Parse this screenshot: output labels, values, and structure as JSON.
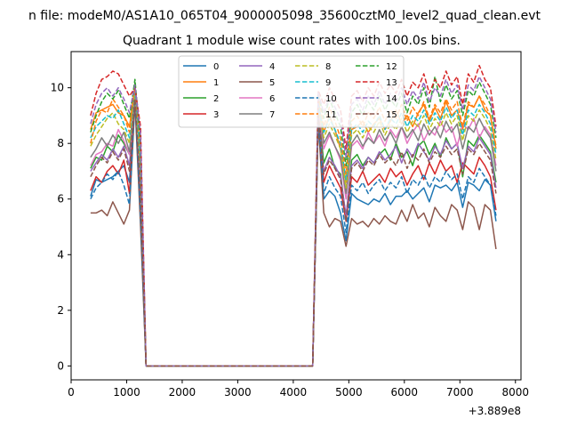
{
  "suptitle": "n file: modeM0/AS1A10_065T04_9000005098_35600cztM0_level2_quad_clean.evt",
  "chart_data": {
    "type": "line",
    "title": "Quadrant 1 module wise count rates with 100.0s bins.",
    "xlabel": "",
    "ylabel": "",
    "x_offset_label": "+3.889e8",
    "xlim": [
      0,
      8100
    ],
    "ylim": [
      -0.5,
      11.3
    ],
    "x_ticks": [
      0,
      1000,
      2000,
      3000,
      4000,
      5000,
      6000,
      7000,
      8000
    ],
    "y_ticks": [
      0,
      2,
      4,
      6,
      8,
      10
    ],
    "grid": false,
    "legend_placement": "top-center",
    "x": [
      350,
      450,
      550,
      650,
      750,
      850,
      950,
      1050,
      1150,
      1250,
      1350,
      1450,
      4350,
      4450,
      4550,
      4650,
      4750,
      4850,
      4950,
      5050,
      5150,
      5250,
      5350,
      5450,
      5550,
      5650,
      5750,
      5850,
      5950,
      6050,
      6150,
      6250,
      6350,
      6450,
      6550,
      6650,
      6750,
      6850,
      6950,
      7050,
      7150,
      7250,
      7350,
      7450,
      7550,
      7650
    ],
    "series": [
      {
        "name": "0",
        "color": "#1f77b4",
        "dash": "solid",
        "values": [
          6.1,
          6.7,
          6.6,
          6.7,
          6.8,
          7.0,
          7.2,
          6.6,
          9.8,
          5.5,
          0,
          0,
          0,
          9.1,
          6.0,
          6.3,
          6.1,
          5.5,
          4.5,
          6.2,
          6.0,
          5.9,
          5.8,
          6.0,
          5.9,
          6.2,
          5.8,
          6.1,
          6.1,
          6.3,
          6.0,
          6.2,
          6.4,
          5.9,
          6.5,
          6.4,
          6.5,
          6.3,
          6.6,
          5.7,
          6.6,
          6.5,
          6.3,
          6.7,
          6.5,
          5.2
        ]
      },
      {
        "name": "1",
        "color": "#ff7f0e",
        "dash": "solid",
        "values": [
          8.5,
          9.1,
          9.2,
          9.3,
          9.4,
          9.1,
          9.0,
          8.6,
          10.0,
          7.5,
          0,
          0,
          0,
          9.5,
          8.4,
          9.0,
          8.5,
          7.8,
          6.6,
          8.5,
          8.6,
          8.8,
          8.4,
          8.7,
          8.9,
          8.5,
          8.8,
          9.2,
          8.7,
          9.0,
          8.6,
          9.1,
          9.4,
          8.8,
          9.3,
          8.9,
          9.5,
          9.0,
          9.2,
          8.5,
          9.4,
          9.3,
          9.7,
          9.2,
          9.0,
          7.8
        ]
      },
      {
        "name": "2",
        "color": "#2ca02c",
        "dash": "solid",
        "values": [
          7.1,
          7.5,
          7.4,
          7.9,
          7.7,
          8.3,
          8.0,
          7.6,
          10.2,
          6.4,
          0,
          0,
          0,
          9.2,
          7.3,
          7.8,
          7.1,
          6.9,
          5.3,
          7.4,
          7.6,
          7.2,
          7.5,
          7.3,
          7.6,
          7.8,
          7.4,
          8.0,
          7.5,
          7.7,
          7.2,
          7.9,
          8.1,
          7.6,
          8.0,
          7.5,
          8.2,
          7.8,
          8.0,
          6.8,
          8.1,
          7.9,
          8.3,
          8.0,
          7.7,
          6.6
        ]
      },
      {
        "name": "3",
        "color": "#d62728",
        "dash": "solid",
        "values": [
          6.3,
          6.8,
          6.6,
          7.0,
          7.2,
          6.9,
          7.4,
          6.2,
          9.9,
          5.7,
          0,
          0,
          0,
          9.3,
          6.6,
          7.2,
          6.8,
          6.4,
          5.2,
          6.8,
          6.6,
          7.0,
          6.5,
          6.7,
          6.9,
          6.6,
          7.1,
          6.8,
          7.0,
          6.5,
          6.9,
          7.2,
          6.7,
          7.3,
          6.9,
          7.4,
          7.0,
          7.2,
          6.6,
          7.3,
          7.1,
          6.9,
          7.5,
          7.2,
          6.8,
          5.6
        ]
      },
      {
        "name": "4",
        "color": "#9467bd",
        "dash": "solid",
        "values": [
          7.0,
          7.3,
          7.6,
          7.4,
          7.8,
          7.5,
          7.9,
          7.2,
          9.7,
          6.3,
          0,
          0,
          0,
          9.0,
          7.0,
          7.5,
          7.2,
          6.8,
          5.4,
          7.2,
          7.4,
          7.1,
          7.5,
          7.3,
          7.7,
          7.4,
          7.6,
          7.9,
          7.3,
          7.8,
          7.5,
          8.0,
          7.7,
          7.4,
          7.9,
          7.6,
          8.1,
          7.8,
          8.0,
          7.1,
          7.9,
          7.7,
          8.2,
          7.9,
          7.6,
          6.4
        ]
      },
      {
        "name": "5",
        "color": "#8c564b",
        "dash": "solid",
        "values": [
          5.5,
          5.5,
          5.6,
          5.4,
          5.9,
          5.5,
          5.1,
          5.6,
          9.5,
          5.0,
          0,
          0,
          0,
          8.8,
          5.5,
          5.0,
          5.3,
          5.2,
          4.3,
          5.3,
          5.1,
          5.2,
          5.0,
          5.3,
          5.1,
          5.4,
          5.2,
          5.1,
          5.6,
          5.2,
          5.8,
          5.3,
          5.5,
          5.0,
          5.7,
          5.4,
          5.2,
          5.8,
          5.6,
          4.9,
          5.9,
          5.7,
          4.9,
          5.8,
          5.6,
          4.2
        ]
      },
      {
        "name": "6",
        "color": "#e377c2",
        "dash": "solid",
        "values": [
          7.2,
          7.6,
          7.7,
          8.0,
          7.9,
          8.5,
          8.1,
          7.6,
          9.8,
          6.8,
          0,
          0,
          0,
          9.4,
          7.8,
          8.3,
          7.9,
          7.4,
          6.0,
          7.9,
          8.1,
          7.8,
          8.4,
          8.0,
          8.3,
          7.9,
          8.5,
          8.2,
          8.6,
          8.0,
          8.4,
          8.7,
          8.1,
          8.5,
          8.3,
          8.8,
          8.4,
          8.6,
          7.9,
          8.7,
          8.5,
          8.9,
          8.2,
          8.6,
          8.3,
          7.2
        ]
      },
      {
        "name": "7",
        "color": "#7f7f7f",
        "dash": "solid",
        "values": [
          7.5,
          7.8,
          8.2,
          7.9,
          8.3,
          8.0,
          8.4,
          7.7,
          9.9,
          7.0,
          0,
          0,
          0,
          9.6,
          8.0,
          8.4,
          7.9,
          7.5,
          6.2,
          8.0,
          8.3,
          7.9,
          8.2,
          8.0,
          8.5,
          8.1,
          8.4,
          8.0,
          8.6,
          8.2,
          8.5,
          8.1,
          8.7,
          8.3,
          8.6,
          8.2,
          8.8,
          8.4,
          8.7,
          7.8,
          8.6,
          8.4,
          8.9,
          8.5,
          8.2,
          7.0
        ]
      },
      {
        "name": "8",
        "color": "#bcbd22",
        "dash": "dashed",
        "values": [
          7.9,
          8.3,
          8.6,
          8.9,
          9.1,
          8.7,
          8.5,
          8.0,
          9.9,
          7.2,
          0,
          0,
          0,
          9.3,
          8.2,
          8.7,
          8.3,
          7.8,
          6.4,
          8.3,
          8.5,
          8.2,
          8.6,
          8.4,
          8.8,
          8.3,
          8.7,
          8.5,
          8.9,
          8.4,
          8.8,
          8.6,
          9.0,
          8.5,
          8.9,
          8.6,
          9.1,
          8.7,
          9.0,
          8.1,
          9.0,
          8.8,
          9.2,
          8.9,
          8.5,
          7.4
        ]
      },
      {
        "name": "9",
        "color": "#17becf",
        "dash": "dashed",
        "values": [
          8.2,
          8.6,
          8.8,
          9.0,
          8.9,
          9.2,
          8.7,
          8.2,
          10.0,
          7.4,
          0,
          0,
          0,
          9.4,
          8.4,
          8.9,
          8.5,
          8.0,
          6.7,
          8.5,
          8.7,
          8.4,
          8.8,
          8.6,
          9.0,
          8.5,
          8.9,
          8.7,
          9.1,
          8.6,
          9.0,
          8.8,
          9.2,
          8.7,
          9.1,
          8.8,
          9.3,
          8.9,
          9.2,
          8.3,
          9.2,
          9.0,
          9.4,
          9.1,
          8.7,
          7.6
        ]
      },
      {
        "name": "10",
        "color": "#1f77b4",
        "dash": "dashed",
        "values": [
          6.0,
          6.4,
          6.6,
          6.9,
          6.7,
          7.0,
          6.5,
          5.8,
          9.6,
          5.4,
          0,
          0,
          0,
          8.9,
          6.2,
          6.8,
          6.4,
          6.1,
          4.8,
          6.5,
          6.3,
          6.6,
          6.2,
          6.5,
          6.7,
          6.3,
          6.6,
          6.4,
          6.8,
          6.2,
          6.7,
          6.5,
          6.9,
          6.4,
          6.8,
          6.6,
          7.0,
          6.7,
          6.9,
          6.0,
          6.8,
          6.6,
          7.1,
          6.8,
          6.5,
          5.4
        ]
      },
      {
        "name": "11",
        "color": "#ff7f0e",
        "dash": "dashed",
        "values": [
          8.0,
          8.8,
          9.2,
          9.1,
          9.6,
          9.3,
          9.0,
          8.4,
          10.1,
          7.8,
          0,
          0,
          0,
          9.7,
          8.6,
          9.3,
          8.8,
          8.2,
          6.9,
          8.8,
          9.0,
          8.6,
          9.1,
          8.9,
          9.3,
          8.8,
          9.2,
          8.9,
          9.4,
          8.8,
          9.3,
          9.0,
          9.5,
          8.9,
          9.4,
          9.1,
          9.6,
          9.2,
          9.5,
          8.6,
          9.5,
          9.3,
          9.7,
          9.4,
          9.0,
          7.9
        ]
      },
      {
        "name": "12",
        "color": "#2ca02c",
        "dash": "dashed",
        "values": [
          8.4,
          9.0,
          9.5,
          9.8,
          9.6,
          9.9,
          9.4,
          8.9,
          10.3,
          8.0,
          0,
          0,
          0,
          9.8,
          8.9,
          9.6,
          9.1,
          8.6,
          7.2,
          9.1,
          9.4,
          9.0,
          9.5,
          9.2,
          9.7,
          9.2,
          9.6,
          9.3,
          9.8,
          9.1,
          9.7,
          9.4,
          10.0,
          9.3,
          10.4,
          9.5,
          10.1,
          9.6,
          9.9,
          9.0,
          9.9,
          9.7,
          10.2,
          9.8,
          9.4,
          8.2
        ]
      },
      {
        "name": "13",
        "color": "#d62728",
        "dash": "dashed",
        "values": [
          9.0,
          9.8,
          10.3,
          10.4,
          10.6,
          10.5,
          10.1,
          9.7,
          10.0,
          8.6,
          0,
          0,
          0,
          9.9,
          9.4,
          10.0,
          9.6,
          9.2,
          7.8,
          9.7,
          9.9,
          9.5,
          10.0,
          9.7,
          10.2,
          9.8,
          10.1,
          9.8,
          10.3,
          9.7,
          10.2,
          10.0,
          10.5,
          9.8,
          10.3,
          10.0,
          10.6,
          10.1,
          10.4,
          9.4,
          10.5,
          10.2,
          10.8,
          10.3,
          10.0,
          8.6
        ]
      },
      {
        "name": "14",
        "color": "#9467bd",
        "dash": "dashed",
        "values": [
          8.7,
          9.4,
          9.8,
          10.0,
          9.7,
          10.0,
          9.6,
          9.1,
          10.1,
          8.3,
          0,
          0,
          0,
          9.8,
          9.1,
          9.7,
          9.3,
          8.9,
          7.5,
          9.4,
          9.6,
          9.2,
          9.7,
          9.4,
          9.9,
          9.4,
          9.8,
          9.5,
          10.0,
          9.4,
          9.9,
          9.6,
          10.2,
          9.5,
          10.0,
          9.7,
          10.3,
          9.8,
          10.1,
          9.2,
          10.1,
          9.9,
          10.4,
          10.0,
          9.6,
          8.4
        ]
      },
      {
        "name": "15",
        "color": "#8c564b",
        "dash": "dashed",
        "values": [
          6.8,
          7.2,
          7.5,
          7.3,
          7.7,
          7.4,
          7.8,
          7.0,
          9.6,
          6.2,
          0,
          0,
          0,
          9.0,
          6.9,
          7.4,
          7.1,
          6.7,
          5.2,
          7.1,
          7.3,
          7.0,
          7.4,
          7.2,
          7.6,
          7.3,
          7.5,
          7.2,
          7.7,
          7.1,
          7.6,
          7.4,
          7.8,
          7.3,
          7.7,
          7.5,
          7.9,
          7.6,
          7.8,
          6.9,
          7.8,
          7.6,
          8.0,
          7.7,
          7.4,
          6.2
        ]
      }
    ]
  }
}
